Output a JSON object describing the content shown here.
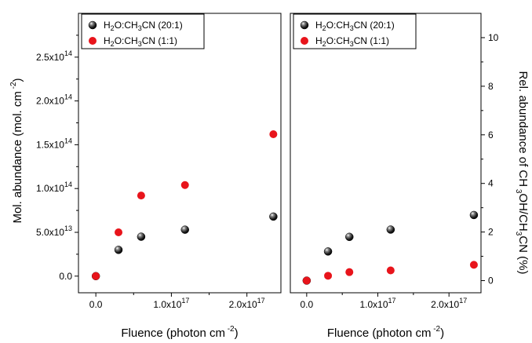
{
  "chart_data": [
    {
      "type": "scatter",
      "xlabel": "Fluence (photon cm",
      "xlabel_sup": "-2",
      "xlabel_end": ")",
      "ylabel": "Mol. abundance (mol. cm",
      "ylabel_sup": "-2",
      "ylabel_end": ")",
      "xlim": [
        -2.3e+16,
        2.45e+17
      ],
      "ylim": [
        -19000000000000.0,
        300000000000000.0
      ],
      "x_ticks": [
        {
          "value": 0,
          "mant": "0.0",
          "exp": ""
        },
        {
          "value": 1e+17,
          "mant": "1.0x10",
          "exp": "17"
        },
        {
          "value": 2e+17,
          "mant": "2.0x10",
          "exp": "17"
        }
      ],
      "y_ticks": [
        {
          "value": 0,
          "mant": "0.0",
          "exp": ""
        },
        {
          "value": 50000000000000.0,
          "mant": "5.0x10",
          "exp": "13"
        },
        {
          "value": 100000000000000.0,
          "mant": "1.0x10",
          "exp": "14"
        },
        {
          "value": 150000000000000.0,
          "mant": "1.5x10",
          "exp": "14"
        },
        {
          "value": 200000000000000.0,
          "mant": "2.0x10",
          "exp": "14"
        },
        {
          "value": 250000000000000.0,
          "mant": "2.5x10",
          "exp": "14"
        }
      ],
      "series": [
        {
          "name": "H2O:CH3CN (20:1)",
          "color": "#000000",
          "style": "sphere",
          "x": [
            0,
            3e+16,
            6e+16,
            1.18e+17,
            2.35e+17
          ],
          "y": [
            0,
            30000000000000.0,
            45000000000000.0,
            53000000000000.0,
            68000000000000.0
          ]
        },
        {
          "name": "H2O:CH3CN (1:1)",
          "color": "#e8141b",
          "style": "disc",
          "x": [
            0,
            3e+16,
            6e+16,
            1.18e+17,
            2.35e+17
          ],
          "y": [
            0,
            50000000000000.0,
            92000000000000.0,
            104000000000000.0,
            162000000000000.0
          ]
        }
      ],
      "legend": {
        "position": "top-left",
        "entries": [
          {
            "p1": "H",
            "s1": "2",
            "p2": "O:CH",
            "s2": "3",
            "p3": "CN (20:1)"
          },
          {
            "p1": "H",
            "s1": "2",
            "p2": "O:CH",
            "s2": "3",
            "p3": "CN (1:1)"
          }
        ]
      },
      "grid": false
    },
    {
      "type": "scatter",
      "xlabel": "Fluence (photon cm",
      "xlabel_sup": "-2",
      "xlabel_end": ")",
      "ylabel_parts": [
        "Rel. abundance of CH",
        "3",
        "OH/CH",
        "3",
        "CN (%)"
      ],
      "y_axis_side": "right",
      "xlim": [
        -2.3e+16,
        2.45e+17
      ],
      "ylim": [
        -0.5,
        11.0
      ],
      "x_ticks": [
        {
          "value": 0,
          "mant": "0.0",
          "exp": ""
        },
        {
          "value": 1e+17,
          "mant": "1.0x10",
          "exp": "17"
        },
        {
          "value": 2e+17,
          "mant": "2.0x10",
          "exp": "17"
        }
      ],
      "y_ticks": [
        {
          "value": 0,
          "mant": "0",
          "exp": ""
        },
        {
          "value": 2,
          "mant": "2",
          "exp": ""
        },
        {
          "value": 4,
          "mant": "4",
          "exp": ""
        },
        {
          "value": 6,
          "mant": "6",
          "exp": ""
        },
        {
          "value": 8,
          "mant": "8",
          "exp": ""
        },
        {
          "value": 10,
          "mant": "10",
          "exp": ""
        }
      ],
      "series": [
        {
          "name": "H2O:CH3CN (20:1)",
          "color": "#000000",
          "style": "sphere",
          "x": [
            0,
            3e+16,
            6e+16,
            1.18e+17,
            2.35e+17
          ],
          "y": [
            0,
            1.2,
            1.8,
            2.1,
            2.7
          ]
        },
        {
          "name": "H2O:CH3CN (1:1)",
          "color": "#e8141b",
          "style": "disc",
          "x": [
            0,
            3e+16,
            6e+16,
            1.18e+17,
            2.35e+17
          ],
          "y": [
            0,
            0.2,
            0.35,
            0.42,
            0.65
          ]
        }
      ],
      "legend": {
        "position": "top-left",
        "entries": [
          {
            "p1": "H",
            "s1": "2",
            "p2": "O:CH",
            "s2": "3",
            "p3": "CN (20:1)"
          },
          {
            "p1": "H",
            "s1": "2",
            "p2": "O:CH",
            "s2": "3",
            "p3": "CN (1:1)"
          }
        ]
      },
      "grid": false
    }
  ]
}
